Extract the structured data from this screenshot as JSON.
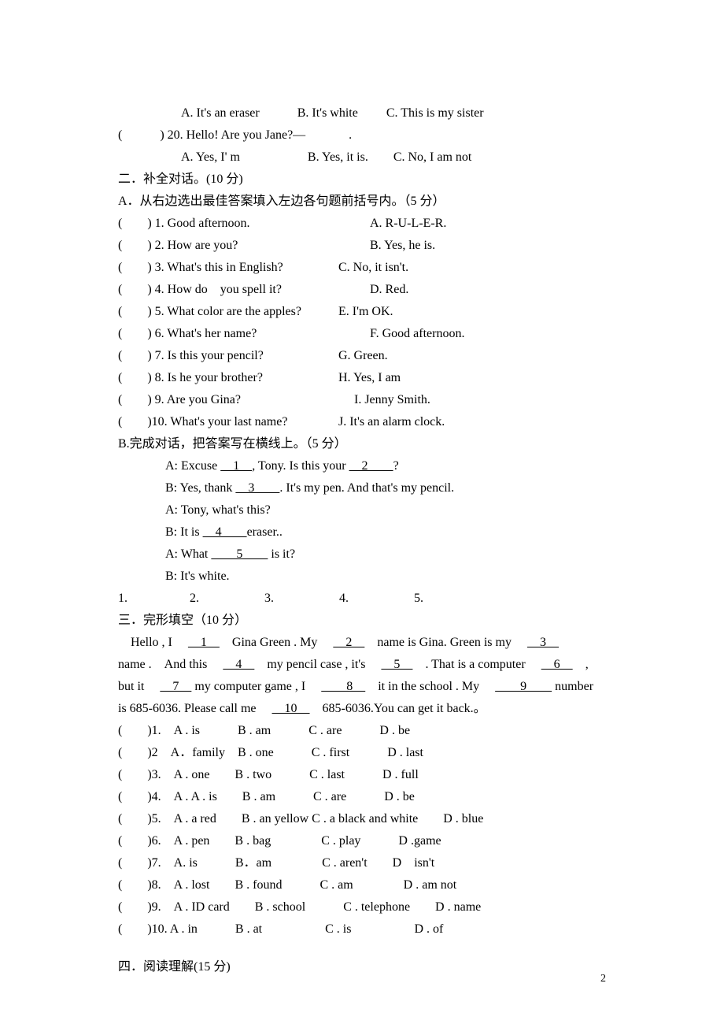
{
  "q19": {
    "optA": "A. It's an eraser",
    "optB": "B. It's white",
    "optC": "C. This is my sister"
  },
  "q20": {
    "prefix": "(　　　) 20. Hello! Are you Jane?—",
    "suffix": ".",
    "optA": "A. Yes, I' m",
    "optB": "B. Yes, it is.",
    "optC": "C. No, I am not"
  },
  "section2": {
    "title": "二．补全对话。(10 分)",
    "partA_title": "A．从右边选出最佳答案填入左边各句题前括号内。（5 分）",
    "partB_title": "B.完成对话，把答案写在横线上。（5 分）",
    "match": [
      {
        "l": "(　　) 1. Good afternoon.",
        "r": "A. R-U-L-E-R."
      },
      {
        "l": "(　　) 2. How are you?",
        "r": "B. Yes, he is."
      },
      {
        "l": "(　　) 3. What's this in English?",
        "r": "C. No, it isn't."
      },
      {
        "l": "(　　) 4. How do　you spell it?",
        "r": "D. Red."
      },
      {
        "l": "(　　) 5. What color are the apples?",
        "r": "E. I'm OK."
      },
      {
        "l": "(　　) 6. What's her name?",
        "r": "F. Good afternoon."
      },
      {
        "l": "(　　) 7. Is this your pencil?",
        "r": "G. Green."
      },
      {
        "l": "(　　) 8. Is he your brother?",
        "r": "H. Yes, I am"
      },
      {
        "l": "(　　) 9. Are you Gina?",
        "r": "I. Jenny Smith."
      },
      {
        "l": "(　　)10. What's your last name?",
        "r": "J. It's an alarm clock."
      }
    ],
    "match_r_offsets": [
      320,
      320,
      280,
      320,
      280,
      320,
      280,
      280,
      300,
      280
    ],
    "dialog": {
      "l1a": "A: Excuse ",
      "l1b": ", Tony. Is this your ",
      "l1c": "?",
      "l2a": "B: Yes, thank ",
      "l2b": ". It's my pen. And that's my pencil.",
      "l3": "A: Tony, what's this?",
      "l4a": "B: It is ",
      "l4b": "eraser..",
      "l5a": "A: What ",
      "l5b": " is it?",
      "l6": "B: It's white.",
      "b1": "　1　",
      "b2": "　2　　",
      "b3": "　3　　",
      "b4": "　4　　",
      "b5": "　　5　　"
    },
    "answers": {
      "a1": "1.",
      "a2": "2.",
      "a3": "3.",
      "a4": "4.",
      "a5": "5."
    }
  },
  "section3": {
    "title": "三．完形填空（10 分）",
    "p1": "　Hello , I 　<u>　1　</u>　Gina Green . My 　<u>　2　</u>　name is Gina. Green is my 　<u>　3　</u>",
    "p2": "name .　And this 　<u>　4　</u>　my pencil case , it's 　<u>　5　</u>　. That is a computer 　<u>　6　</u>　,",
    "p3": "but it 　<u>　7　</u> my computer game , I 　<u>　　8　</u>　it in the school . My 　<u>　　9　　</u> number",
    "p4": "is 685-6036. Please call me 　<u>　10　</u>　685-6036.You can get it back.。",
    "options": [
      {
        "n": "(　　)1.　A . is　　　B . am　　　C . are　　　D . be"
      },
      {
        "n": "(　　)2　A．family　B . one　　　C . first　　　D . last"
      },
      {
        "n": "(　　)3.　A . one　　B . two　　　C . last　　　D . full"
      },
      {
        "n": "(　　)4.　A . A . is　　B . am　　　C . are　　　D . be"
      },
      {
        "n": "(　　)5.　A . a red　　B . an yellow C . a black and white　　D . blue"
      },
      {
        "n": "(　　)6.　A . pen　　B . bag　　　　C . play　　　D .game"
      },
      {
        "n": "(　　)7.　A. is　　　B．am　　　　C . aren't　　D　isn't"
      },
      {
        "n": "(　　)8.　A . lost　　B . found　　　C . am　　　　D . am not"
      },
      {
        "n": "(　　)9.　A . ID card　　B . school　　　C . telephone　　D . name"
      },
      {
        "n": "(　　)10. A . in　　　B . at　　　　　C . is　　　　　D . of"
      }
    ]
  },
  "section4": {
    "title": "四．阅读理解(15 分)"
  },
  "page_number": "2"
}
